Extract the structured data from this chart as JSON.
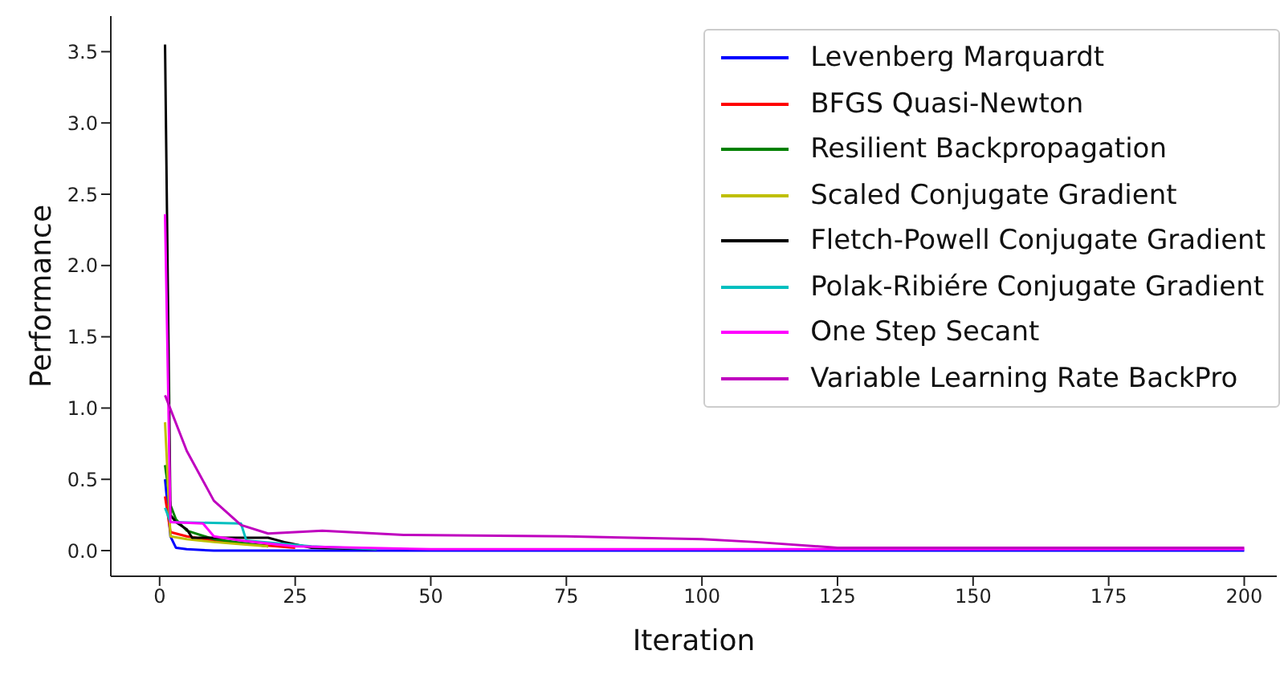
{
  "chart_data": {
    "type": "line",
    "xlabel": "Iteration",
    "ylabel": "Performance",
    "xlim": [
      -9,
      206
    ],
    "ylim": [
      -0.18,
      3.75
    ],
    "xticks": [
      0,
      25,
      50,
      75,
      100,
      125,
      150,
      175,
      200
    ],
    "yticks": [
      {
        "value": 0,
        "label": "0.0"
      },
      {
        "value": 0.5,
        "label": "0.5"
      },
      {
        "value": 1,
        "label": "1.0"
      },
      {
        "value": 1.5,
        "label": "1.5"
      },
      {
        "value": 2,
        "label": "2.0"
      },
      {
        "value": 2.5,
        "label": "2.5"
      },
      {
        "value": 3,
        "label": "3.0"
      },
      {
        "value": 3.5,
        "label": "3.5"
      }
    ],
    "grid": false,
    "legend": "top right",
    "marker": "none",
    "line_style": "solid",
    "series": [
      {
        "name": "Levenberg Marquardt",
        "color": "#0000ff",
        "x": [
          1,
          2,
          3,
          5,
          10,
          25,
          50,
          100,
          200
        ],
        "values": [
          0.5,
          0.1,
          0.02,
          0.01,
          0,
          0,
          0,
          0,
          0
        ]
      },
      {
        "name": "BFGS Quasi-Newton",
        "color": "#ff0000",
        "x": [
          1,
          2,
          5,
          10,
          15,
          25
        ],
        "values": [
          0.38,
          0.13,
          0.1,
          0.07,
          0.05,
          0.02
        ]
      },
      {
        "name": "Resilient Backpropagation",
        "color": "#008000",
        "x": [
          1,
          2,
          3,
          5,
          10,
          20
        ],
        "values": [
          0.6,
          0.32,
          0.22,
          0.14,
          0.08,
          0.03
        ]
      },
      {
        "name": "Scaled Conjugate Gradient",
        "color": "#bfbf00",
        "x": [
          1,
          2,
          5,
          10,
          20
        ],
        "values": [
          0.9,
          0.1,
          0.08,
          0.06,
          0.03
        ]
      },
      {
        "name": "Fletch-Powell Conjugate Gradient",
        "color": "#000000",
        "x": [
          1,
          2,
          3,
          5,
          6,
          20,
          23,
          28,
          40
        ],
        "values": [
          3.55,
          0.25,
          0.2,
          0.15,
          0.09,
          0.09,
          0.06,
          0.02,
          0.01
        ]
      },
      {
        "name": "Polak-Ribiére Conjugate Gradient",
        "color": "#00bfbf",
        "x": [
          1,
          2,
          15,
          16,
          28,
          40
        ],
        "values": [
          0.3,
          0.2,
          0.19,
          0.07,
          0.03,
          0.01
        ]
      },
      {
        "name": "One Step Secant",
        "color": "#ff00ff",
        "x": [
          1,
          2,
          8,
          10,
          15,
          25,
          50,
          100,
          200
        ],
        "values": [
          2.36,
          0.2,
          0.19,
          0.1,
          0.07,
          0.03,
          0.01,
          0.01,
          0.01
        ]
      },
      {
        "name": "Variable Learning Rate BackPro",
        "color": "#bf00bf",
        "x": [
          1,
          5,
          10,
          15,
          20,
          30,
          45,
          75,
          100,
          110,
          125,
          150,
          200
        ],
        "values": [
          1.09,
          0.7,
          0.35,
          0.18,
          0.12,
          0.14,
          0.11,
          0.1,
          0.08,
          0.06,
          0.02,
          0.02,
          0.02
        ]
      }
    ]
  }
}
